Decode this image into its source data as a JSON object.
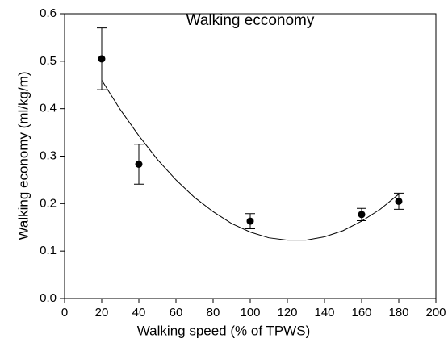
{
  "chart_data": {
    "type": "scatter",
    "title": "Walking ecconomy",
    "x_label": "Walking speed (% of TPWS)",
    "y_label": "Walking economy (ml/kg/m)",
    "xlim": [
      0,
      200
    ],
    "xticks": [
      0,
      20,
      40,
      60,
      80,
      100,
      120,
      140,
      160,
      180,
      200
    ],
    "ylim": [
      0,
      0.6
    ],
    "yticks": [
      {
        "value": 0,
        "label": "0.0"
      },
      0.1,
      0.2,
      0.3,
      0.4,
      0.5,
      0.6
    ],
    "series": [
      {
        "type": "scatter",
        "color": "#000000",
        "x": [
          20,
          40,
          100,
          160,
          180
        ],
        "values": [
          0.505,
          0.283,
          0.163,
          0.177,
          0.205
        ],
        "errors": [
          0.065,
          0.042,
          0.016,
          0.013,
          0.017
        ]
      },
      {
        "type": "line",
        "color": "#000000",
        "x": [
          20,
          30,
          40,
          50,
          60,
          70,
          80,
          90,
          100,
          110,
          120,
          130,
          140,
          150,
          160,
          170,
          180
        ],
        "values": [
          0.46,
          0.398,
          0.343,
          0.293,
          0.25,
          0.213,
          0.183,
          0.158,
          0.14,
          0.128,
          0.123,
          0.123,
          0.13,
          0.143,
          0.163,
          0.188,
          0.22
        ]
      }
    ]
  }
}
